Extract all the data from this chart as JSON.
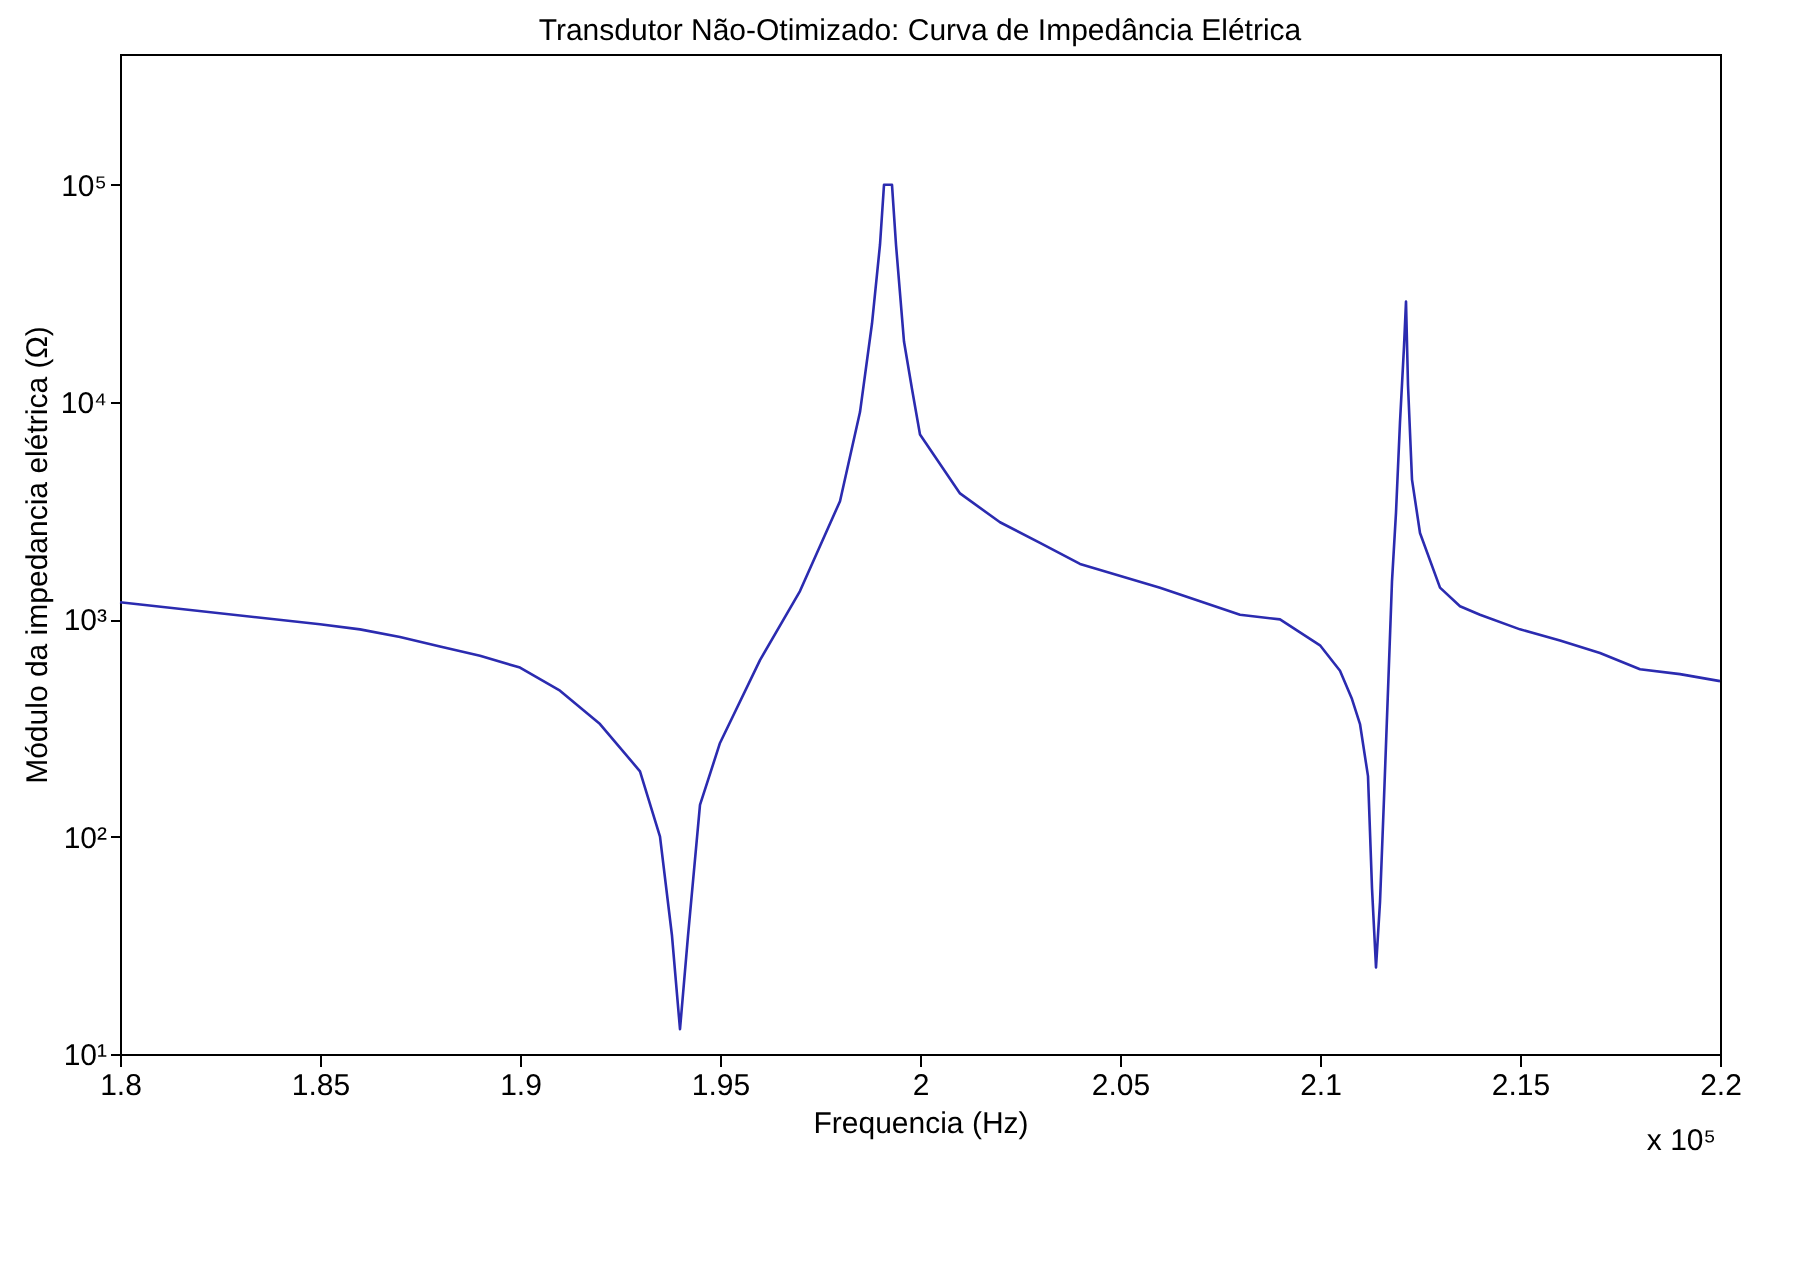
{
  "chart_data": {
    "type": "line",
    "title": "Transdutor Não-Otimizado: Curva de Impedância Elétrica",
    "xlabel": "Frequencia (Hz)",
    "ylabel": "Módulo da impedancia elétrica (Ω)",
    "annotations": [
      "x 10⁵"
    ],
    "log": "y",
    "grid": false,
    "marker": "none",
    "line_style": "solid",
    "xlim": [
      1.8,
      2.2
    ],
    "xticks": [
      1.8,
      1.85,
      1.9,
      1.95,
      2,
      2.05,
      2.1,
      2.15,
      2.2
    ],
    "ylim": [
      10,
      400000
    ],
    "yticks": [
      {
        "value": 10,
        "label": "10¹"
      },
      {
        "value": 100,
        "label": "10²"
      },
      {
        "value": 1000,
        "label": "10³"
      },
      {
        "value": 10000,
        "label": "10⁴"
      },
      {
        "value": 100000,
        "label": "10⁵"
      }
    ],
    "series": [
      {
        "color": "#2b2bb0",
        "x": [
          1.8,
          1.85,
          1.86,
          1.87,
          1.88,
          1.89,
          1.9,
          1.91,
          1.92,
          1.93,
          1.935,
          1.938,
          1.94,
          1.942,
          1.945,
          1.95,
          1.96,
          1.97,
          1.98,
          1.985,
          1.988,
          1.99,
          1.991,
          1.993,
          1.994,
          1.996,
          1.998,
          2.0,
          2.01,
          2.02,
          2.03,
          2.04,
          2.06,
          2.08,
          2.09,
          2.1,
          2.105,
          2.108,
          2.11,
          2.112,
          2.113,
          2.114,
          2.115,
          2.116,
          2.117,
          2.118,
          2.119,
          2.12,
          2.121,
          2.1215,
          2.122,
          2.123,
          2.125,
          2.13,
          2.135,
          2.14,
          2.15,
          2.16,
          2.17,
          2.18,
          2.19,
          2.2
        ],
        "values": [
          1200,
          950,
          900,
          830,
          750,
          680,
          600,
          470,
          330,
          200,
          100,
          35,
          13,
          35,
          140,
          270,
          650,
          1350,
          3500,
          9000,
          23000,
          53000,
          100000,
          100000,
          53000,
          19000,
          11500,
          7100,
          3800,
          2800,
          2250,
          1800,
          1400,
          1050,
          1000,
          760,
          580,
          430,
          330,
          190,
          58,
          25,
          50,
          150,
          470,
          1500,
          3100,
          8100,
          18000,
          29000,
          12000,
          4400,
          2500,
          1400,
          1150,
          1050,
          900,
          800,
          700,
          590,
          560,
          520
        ]
      }
    ]
  }
}
